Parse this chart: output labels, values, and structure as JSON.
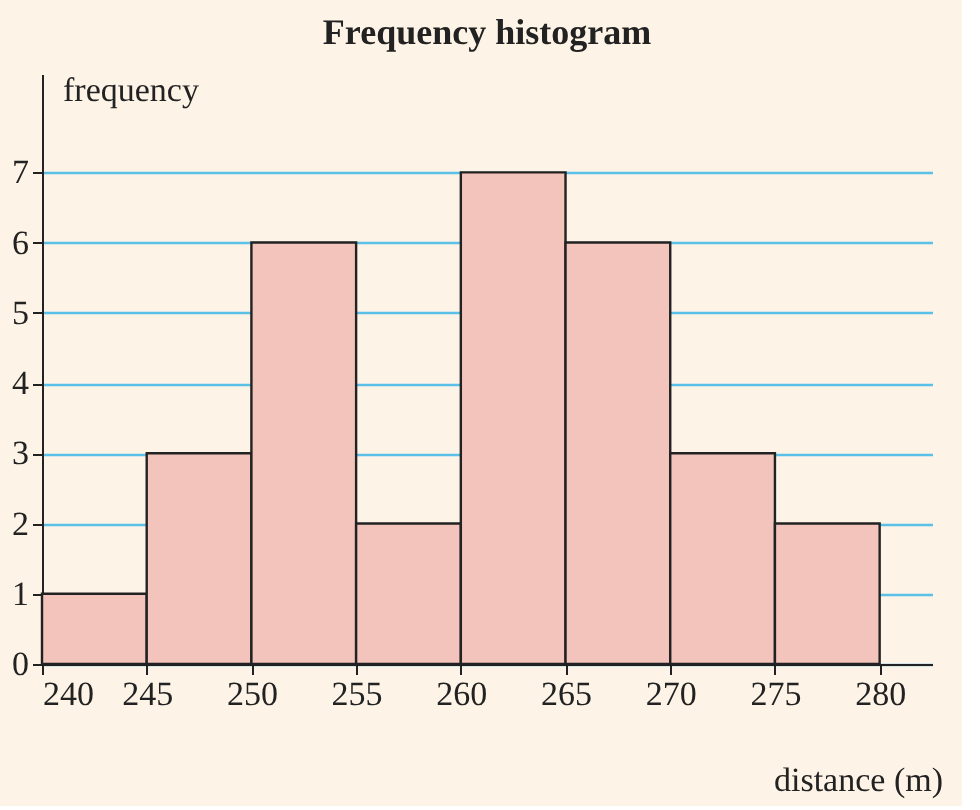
{
  "chart_data": {
    "type": "histogram",
    "title": "Frequency histogram",
    "xlabel": "distance (m)",
    "ylabel": "frequency",
    "bins": [
      240,
      245,
      250,
      255,
      260,
      265,
      270,
      275,
      280
    ],
    "values": [
      1,
      3,
      6,
      2,
      7,
      6,
      3,
      2
    ],
    "color": "#f2c4bb",
    "xlim": [
      240,
      282.5
    ],
    "xticks": [
      240,
      245,
      250,
      255,
      260,
      265,
      270,
      275,
      280
    ],
    "ylim": [
      0,
      8.4
    ],
    "yticks": [
      0,
      1,
      2,
      3,
      4,
      5,
      6,
      7
    ],
    "grid": "y"
  }
}
